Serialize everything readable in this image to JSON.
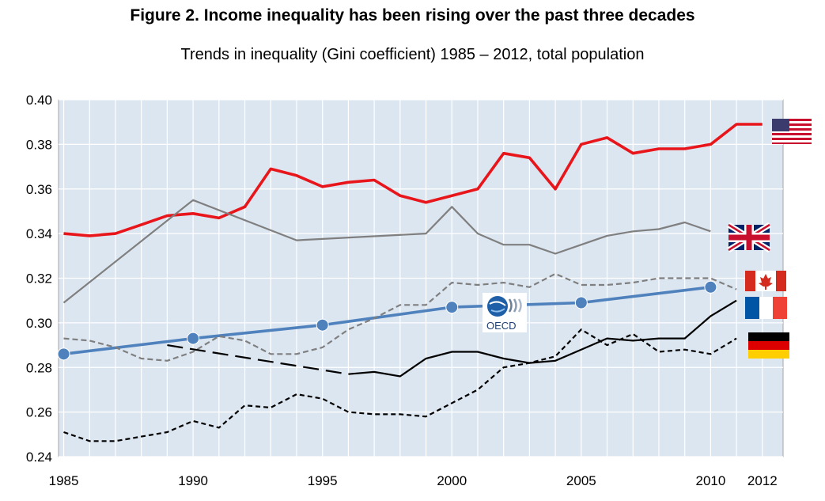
{
  "title": "Figure 2. Income inequality has been rising over the past three decades",
  "subtitle": "Trends in inequality (Gini coefficient) 1985 – 2012, total population",
  "colors": {
    "plot_background": "#dce6f1",
    "gridline": "#ffffff",
    "usa": "#e8161b",
    "uk": "#7f7f7f",
    "oecd": "#4f81bd",
    "canada": "#7f7f7f",
    "france": "#000000",
    "germany": "#000000"
  },
  "chart_data": {
    "type": "line",
    "title": "Figure 2. Income inequality has been rising over the past three decades",
    "subtitle": "Trends in inequality (Gini coefficient) 1985 – 2012, total population",
    "xlabel": "",
    "ylabel": "",
    "xlim": [
      1984.8,
      2012.8
    ],
    "ylim": [
      0.24,
      0.4
    ],
    "x_ticks": [
      1985,
      1990,
      1995,
      2000,
      2005,
      2010,
      2012
    ],
    "y_ticks": [
      "0.24",
      "0.26",
      "0.28",
      "0.30",
      "0.32",
      "0.34",
      "0.36",
      "0.38",
      "0.40"
    ],
    "grid": true,
    "legend": "icons at line ends (national flags and OECD logo)",
    "series": [
      {
        "key": "usa",
        "icon": "usa-flag",
        "color": "#e8161b",
        "style": "solid-thick",
        "x": [
          1985,
          1986,
          1987,
          1988,
          1989,
          1990,
          1991,
          1992,
          1993,
          1994,
          1995,
          1996,
          1997,
          1998,
          1999,
          2000,
          2001,
          2002,
          2003,
          2004,
          2005,
          2006,
          2007,
          2008,
          2009,
          2010,
          2011,
          2012
        ],
        "y": [
          0.34,
          0.339,
          0.34,
          0.344,
          0.348,
          0.349,
          0.347,
          0.352,
          0.369,
          0.366,
          0.361,
          0.363,
          0.364,
          0.357,
          0.354,
          0.357,
          0.36,
          0.376,
          0.374,
          0.36,
          0.38,
          0.383,
          0.376,
          0.378,
          0.378,
          0.38,
          0.389,
          0.389
        ]
      },
      {
        "key": "uk",
        "icon": "uk-flag",
        "color": "#7f7f7f",
        "style": "solid",
        "x": [
          1985,
          1990,
          1994,
          1999,
          2000,
          2001,
          2002,
          2003,
          2004,
          2005,
          2006,
          2007,
          2008,
          2009,
          2010
        ],
        "y": [
          0.309,
          0.355,
          0.337,
          0.34,
          0.352,
          0.34,
          0.335,
          0.335,
          0.331,
          0.335,
          0.339,
          0.341,
          0.342,
          0.345,
          0.341
        ]
      },
      {
        "key": "oecd",
        "icon": "oecd-logo",
        "color": "#4f81bd",
        "style": "solid-markers",
        "x": [
          1985,
          1990,
          1995,
          2000,
          2005,
          2010
        ],
        "y": [
          0.286,
          0.293,
          0.299,
          0.307,
          0.309,
          0.316
        ]
      },
      {
        "key": "canada",
        "icon": "canada-flag",
        "color": "#7f7f7f",
        "style": "dashed",
        "x": [
          1985,
          1986,
          1987,
          1988,
          1989,
          1990,
          1991,
          1992,
          1993,
          1994,
          1995,
          1996,
          1997,
          1998,
          1999,
          2000,
          2001,
          2002,
          2003,
          2004,
          2005,
          2006,
          2007,
          2008,
          2009,
          2010,
          2011
        ],
        "y": [
          0.293,
          0.292,
          0.289,
          0.284,
          0.283,
          0.287,
          0.294,
          0.292,
          0.286,
          0.286,
          0.289,
          0.297,
          0.302,
          0.308,
          0.308,
          0.318,
          0.317,
          0.318,
          0.316,
          0.322,
          0.317,
          0.317,
          0.318,
          0.32,
          0.32,
          0.32,
          0.315
        ]
      },
      {
        "key": "france",
        "icon": "france-flag",
        "color": "#000000",
        "style": "long-dash-then-solid",
        "x": [
          1989,
          1996,
          1997,
          1998,
          1999,
          2000,
          2001,
          2002,
          2003,
          2004,
          2005,
          2006,
          2007,
          2008,
          2009,
          2010,
          2011
        ],
        "y": [
          0.29,
          0.277,
          0.278,
          0.276,
          0.284,
          0.287,
          0.287,
          0.284,
          0.282,
          0.283,
          0.288,
          0.293,
          0.292,
          0.293,
          0.293,
          0.303,
          0.31
        ]
      },
      {
        "key": "germany",
        "icon": "germany-flag",
        "color": "#000000",
        "style": "short-dash",
        "x": [
          1985,
          1986,
          1987,
          1988,
          1989,
          1990,
          1991,
          1992,
          1993,
          1994,
          1995,
          1996,
          1997,
          1998,
          1999,
          2000,
          2001,
          2002,
          2003,
          2004,
          2005,
          2006,
          2007,
          2008,
          2009,
          2010,
          2011
        ],
        "y": [
          0.251,
          0.247,
          0.247,
          0.249,
          0.251,
          0.256,
          0.253,
          0.263,
          0.262,
          0.268,
          0.266,
          0.26,
          0.259,
          0.259,
          0.258,
          0.264,
          0.27,
          0.28,
          0.282,
          0.285,
          0.297,
          0.29,
          0.295,
          0.287,
          0.288,
          0.286,
          0.293
        ]
      }
    ]
  }
}
